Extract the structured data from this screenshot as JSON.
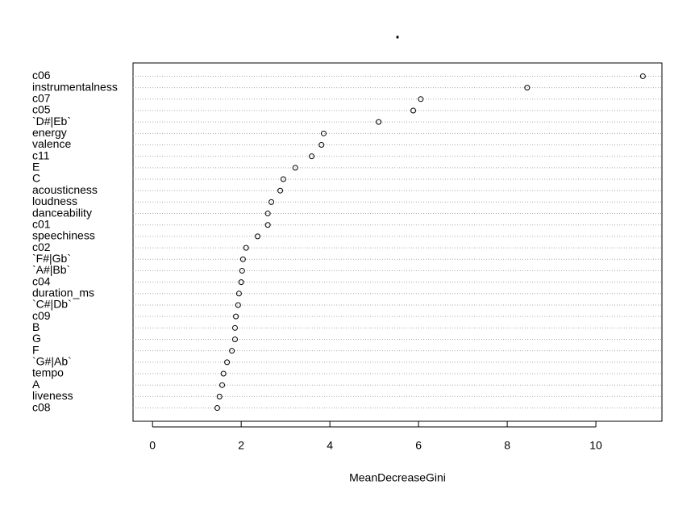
{
  "chart_data": {
    "type": "dot",
    "title": ".",
    "x_label": "MeanDecreaseGini",
    "categories": [
      "c06",
      "instrumentalness",
      "c07",
      "c05",
      "`D#|Eb`",
      "energy",
      "valence",
      "c11",
      "E",
      "C",
      "acousticness",
      "loudness",
      "danceability",
      "c01",
      "speechiness",
      "c02",
      "`F#|Gb`",
      "`A#|Bb`",
      "c04",
      "duration_ms",
      "`C#|Db`",
      "c09",
      "B",
      "G",
      "F",
      "`G#|Ab`",
      "tempo",
      "A",
      "liveness",
      "c08"
    ],
    "values": [
      11.06,
      8.45,
      6.05,
      5.88,
      5.1,
      3.86,
      3.81,
      3.59,
      3.22,
      2.95,
      2.88,
      2.68,
      2.6,
      2.6,
      2.37,
      2.11,
      2.04,
      2.02,
      2.0,
      1.95,
      1.93,
      1.88,
      1.86,
      1.86,
      1.79,
      1.68,
      1.6,
      1.57,
      1.51,
      1.46
    ],
    "color": "#000000",
    "xlim": [
      -0.44,
      11.49
    ],
    "xticks": [
      0,
      2,
      4,
      6,
      8,
      10
    ],
    "grid": true
  }
}
